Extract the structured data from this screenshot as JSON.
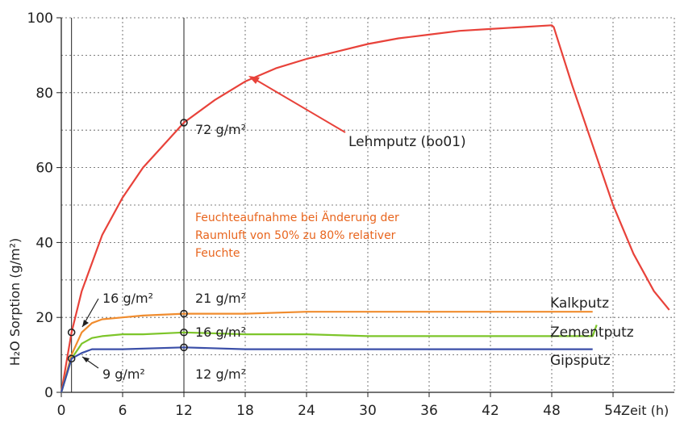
{
  "chart_data": {
    "type": "line",
    "xlabel": "Zeit (h)",
    "ylabel": "H₂O Sorption (g/m²)",
    "xlim": [
      0,
      60
    ],
    "ylim": [
      0,
      100
    ],
    "x_ticks": [
      "0",
      "6",
      "12",
      "18",
      "24",
      "30",
      "36",
      "42",
      "48",
      "54"
    ],
    "y_ticks": [
      "0",
      "20",
      "40",
      "60",
      "80",
      "100"
    ],
    "grid": true,
    "series": [
      {
        "name": "Lehmputz (bo01)",
        "color": "#e8423a",
        "points": [
          [
            0,
            0
          ],
          [
            1,
            16
          ],
          [
            2,
            27
          ],
          [
            4,
            42
          ],
          [
            6,
            52
          ],
          [
            8,
            60
          ],
          [
            10,
            66
          ],
          [
            12,
            72
          ],
          [
            15,
            78
          ],
          [
            18,
            83
          ],
          [
            21,
            86.5
          ],
          [
            24,
            89
          ],
          [
            27,
            91
          ],
          [
            30,
            93
          ],
          [
            33,
            94.5
          ],
          [
            36,
            95.5
          ],
          [
            39,
            96.5
          ],
          [
            42,
            97
          ],
          [
            45,
            97.5
          ],
          [
            48,
            98
          ],
          [
            48.2,
            97.5
          ],
          [
            50,
            82
          ],
          [
            52,
            66
          ],
          [
            54,
            50
          ],
          [
            56,
            37
          ],
          [
            58,
            27
          ],
          [
            59.5,
            22
          ]
        ]
      },
      {
        "name": "Kalkputz",
        "color": "#f08c2e",
        "points": [
          [
            0,
            0
          ],
          [
            1,
            10
          ],
          [
            2,
            16
          ],
          [
            3,
            18.5
          ],
          [
            4,
            19.5
          ],
          [
            6,
            20
          ],
          [
            8,
            20.5
          ],
          [
            12,
            21
          ],
          [
            18,
            21
          ],
          [
            24,
            21.5
          ],
          [
            30,
            21.5
          ],
          [
            36,
            21.5
          ],
          [
            42,
            21.5
          ],
          [
            48,
            21.5
          ],
          [
            50,
            21.5
          ],
          [
            52,
            21.5
          ]
        ]
      },
      {
        "name": "Zementputz",
        "color": "#7dc52a",
        "points": [
          [
            0,
            0
          ],
          [
            1,
            9
          ],
          [
            2,
            13
          ],
          [
            3,
            14.5
          ],
          [
            4,
            15
          ],
          [
            6,
            15.5
          ],
          [
            8,
            15.5
          ],
          [
            12,
            16
          ],
          [
            18,
            15.5
          ],
          [
            24,
            15.5
          ],
          [
            30,
            15
          ],
          [
            36,
            15
          ],
          [
            42,
            15
          ],
          [
            48,
            15
          ],
          [
            52,
            15
          ],
          [
            52.4,
            18
          ]
        ]
      },
      {
        "name": "Gipsputz",
        "color": "#3b4fa8",
        "points": [
          [
            0,
            0
          ],
          [
            1,
            9
          ],
          [
            2,
            10.5
          ],
          [
            3,
            11.5
          ],
          [
            4,
            11.5
          ],
          [
            6,
            11.5
          ],
          [
            12,
            12
          ],
          [
            18,
            11.5
          ],
          [
            24,
            11.5
          ],
          [
            30,
            11.5
          ],
          [
            36,
            11.5
          ],
          [
            42,
            11.5
          ],
          [
            48,
            11.5
          ],
          [
            52,
            11.5
          ]
        ]
      }
    ],
    "vertical_lines": [
      1,
      12
    ],
    "markers": [
      {
        "x": 12,
        "y": 72,
        "label": "72 g/m²"
      },
      {
        "x": 1,
        "y": 16,
        "label": "16 g/m²"
      },
      {
        "x": 1,
        "y": 9,
        "label": "9 g/m²"
      },
      {
        "x": 12,
        "y": 21,
        "label": "21 g/m²"
      },
      {
        "x": 12,
        "y": 16,
        "label": "16 g/m²"
      },
      {
        "x": 12,
        "y": 12,
        "label": "12 g/m²"
      }
    ],
    "annotation_lines": [
      "Feuchteaufnahme bei Änderung der",
      "Raumluft von 50% zu 80% relativer",
      "Feuchte"
    ]
  }
}
